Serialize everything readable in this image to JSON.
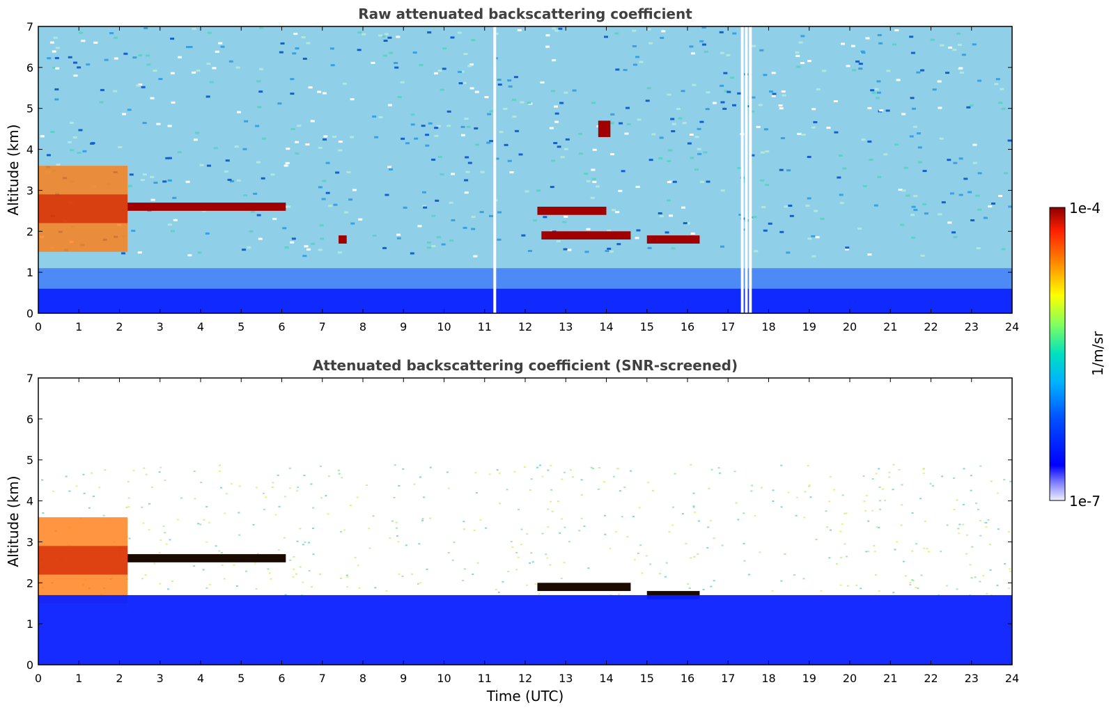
{
  "chart_data": [
    {
      "type": "heatmap",
      "title": "Raw attenuated backscattering coefficient",
      "ylabel": "Altitude (km)",
      "xlabel": "",
      "xlim": [
        0,
        24
      ],
      "ylim": [
        0,
        7
      ],
      "xticks": [
        0,
        1,
        2,
        3,
        4,
        5,
        6,
        7,
        8,
        9,
        10,
        11,
        12,
        13,
        14,
        15,
        16,
        17,
        18,
        19,
        20,
        21,
        22,
        23,
        24
      ],
      "yticks": [
        0,
        1,
        2,
        3,
        4,
        5,
        6,
        7
      ],
      "scale": "log",
      "features": [
        {
          "kind": "aerosol-layer",
          "x": [
            0,
            2.2
          ],
          "altitude_km": [
            1.5,
            3.6
          ],
          "level": "high"
        },
        {
          "kind": "cloud-layer",
          "x": [
            2.2,
            6.1
          ],
          "altitude_km": 2.6,
          "level": "max"
        },
        {
          "kind": "cloud-layer",
          "x": [
            12.3,
            14.0
          ],
          "altitude_km": 2.5,
          "level": "max"
        },
        {
          "kind": "cloud-layer",
          "x": [
            12.4,
            14.6
          ],
          "altitude_km": 1.9,
          "level": "max"
        },
        {
          "kind": "cloud-layer",
          "x": [
            15.0,
            16.3
          ],
          "altitude_km": 1.8,
          "level": "max"
        },
        {
          "kind": "cloud-patch",
          "x": [
            13.8,
            14.1
          ],
          "altitude_km": [
            4.3,
            4.7
          ],
          "level": "max"
        },
        {
          "kind": "cloud-patch",
          "x": [
            7.4,
            7.6
          ],
          "altitude_km": 1.8,
          "level": "max"
        },
        {
          "kind": "boundary-layer",
          "x": [
            0,
            24
          ],
          "altitude_km": [
            0,
            0.6
          ],
          "level": "low"
        }
      ],
      "data_gaps_hours": [
        11.25,
        17.35,
        17.45,
        17.55
      ]
    },
    {
      "type": "heatmap",
      "title": "Attenuated backscattering coefficient (SNR-screened)",
      "ylabel": "Altitude (km)",
      "xlabel": "Time (UTC)",
      "xlim": [
        0,
        24
      ],
      "ylim": [
        0,
        7
      ],
      "xticks": [
        0,
        1,
        2,
        3,
        4,
        5,
        6,
        7,
        8,
        9,
        10,
        11,
        12,
        13,
        14,
        15,
        16,
        17,
        18,
        19,
        20,
        21,
        22,
        23,
        24
      ],
      "yticks": [
        0,
        1,
        2,
        3,
        4,
        5,
        6,
        7
      ],
      "scale": "log",
      "features": [
        {
          "kind": "aerosol-layer",
          "x": [
            0,
            2.2
          ],
          "altitude_km": [
            1.5,
            3.6
          ],
          "level": "high"
        },
        {
          "kind": "cloud-layer",
          "x": [
            2.2,
            6.1
          ],
          "altitude_km": 2.6,
          "level": "saturated"
        },
        {
          "kind": "cloud-layer",
          "x": [
            12.3,
            14.6
          ],
          "altitude_km": 1.9,
          "level": "saturated"
        },
        {
          "kind": "cloud-layer",
          "x": [
            15.0,
            16.3
          ],
          "altitude_km": 1.7,
          "level": "saturated"
        },
        {
          "kind": "boundary-layer",
          "x": [
            0,
            24
          ],
          "altitude_km": [
            0,
            1.7
          ],
          "level": "low"
        }
      ]
    }
  ],
  "colorbar": {
    "label": "1/m/sr",
    "max_label": "1e-4",
    "min_label": "1e-7",
    "colors": [
      "#ffffff",
      "#0000ff",
      "#00aaff",
      "#00e0c0",
      "#a0ff60",
      "#ffff00",
      "#ff8000",
      "#e00000",
      "#7f0000"
    ]
  }
}
